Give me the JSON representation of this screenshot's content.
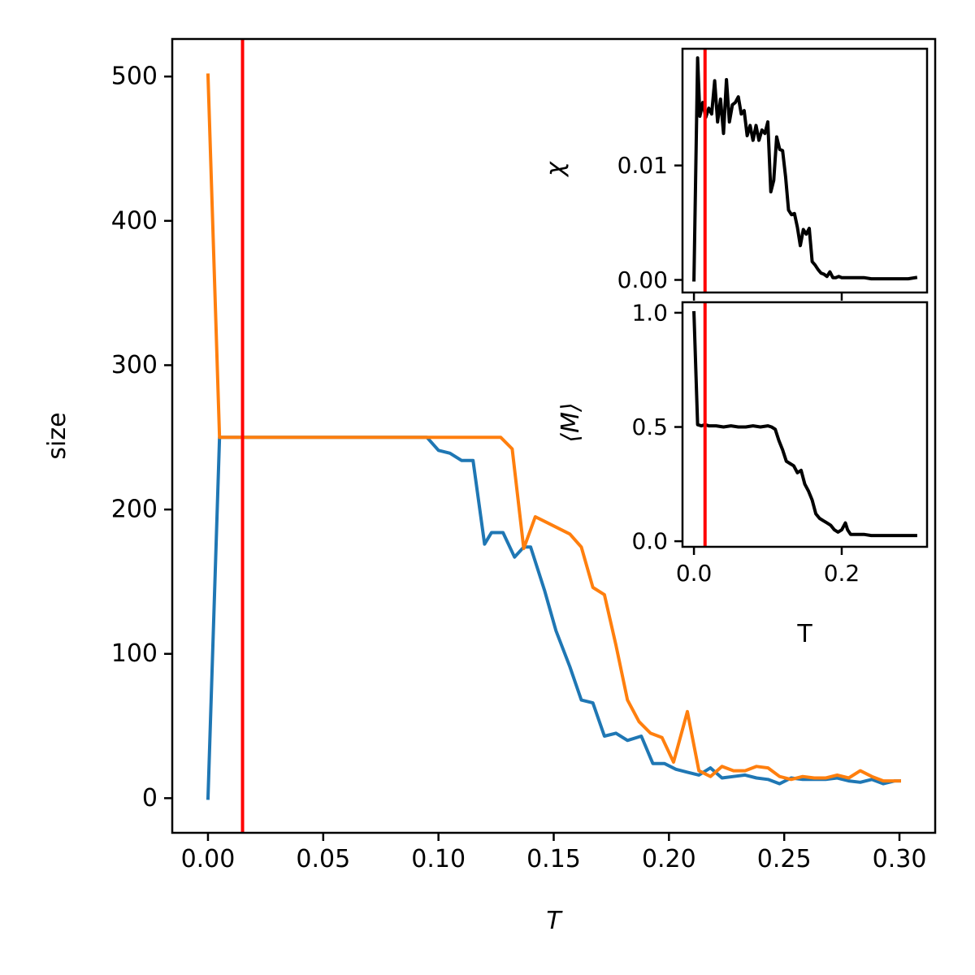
{
  "chart_data": [
    {
      "type": "line",
      "panel": "main",
      "xlabel": "T",
      "ylabel": "size",
      "xlim": [
        -0.0155,
        0.3155
      ],
      "ylim": [
        -24,
        526
      ],
      "xticks": [
        0.0,
        0.05,
        0.1,
        0.15,
        0.2,
        0.25,
        0.3
      ],
      "xtick_labels": [
        "0.00",
        "0.05",
        "0.10",
        "0.15",
        "0.20",
        "0.25",
        "0.30"
      ],
      "yticks": [
        0,
        100,
        200,
        300,
        400,
        500
      ],
      "ytick_labels": [
        "0",
        "100",
        "200",
        "300",
        "400",
        "500"
      ],
      "vline": {
        "x": 0.015,
        "color": "#ff0000"
      },
      "grid": false,
      "series": [
        {
          "color": "#1f77b4",
          "x": [
            0.0,
            0.005,
            0.01,
            0.02,
            0.04,
            0.06,
            0.08,
            0.095,
            0.1,
            0.105,
            0.11,
            0.115,
            0.12,
            0.123,
            0.128,
            0.133,
            0.137,
            0.14,
            0.146,
            0.151,
            0.157,
            0.162,
            0.167,
            0.172,
            0.177,
            0.182,
            0.188,
            0.193,
            0.198,
            0.203,
            0.208,
            0.213,
            0.218,
            0.223,
            0.228,
            0.233,
            0.238,
            0.243,
            0.248,
            0.253,
            0.258,
            0.263,
            0.268,
            0.273,
            0.278,
            0.283,
            0.288,
            0.293,
            0.298,
            0.3
          ],
          "values": [
            0,
            250,
            250,
            250,
            250,
            250,
            250,
            250,
            241,
            239,
            234,
            234,
            176,
            184,
            184,
            167,
            174,
            174,
            144,
            116,
            91,
            68,
            66,
            43,
            45,
            40,
            43,
            24,
            24,
            20,
            18,
            16,
            21,
            14,
            15,
            16,
            14,
            13,
            10,
            14,
            13,
            13,
            13,
            14,
            12,
            11,
            13,
            10,
            12,
            12
          ]
        },
        {
          "color": "#ff7f0e",
          "x": [
            0.0,
            0.005,
            0.01,
            0.03,
            0.06,
            0.09,
            0.11,
            0.127,
            0.132,
            0.137,
            0.142,
            0.147,
            0.152,
            0.157,
            0.162,
            0.167,
            0.172,
            0.177,
            0.182,
            0.187,
            0.192,
            0.197,
            0.202,
            0.208,
            0.213,
            0.218,
            0.223,
            0.228,
            0.233,
            0.238,
            0.243,
            0.248,
            0.253,
            0.258,
            0.263,
            0.268,
            0.273,
            0.278,
            0.283,
            0.288,
            0.293,
            0.298,
            0.3
          ],
          "values": [
            501,
            250,
            250,
            250,
            250,
            250,
            250,
            250,
            242,
            173,
            195,
            191,
            187,
            183,
            174,
            146,
            141,
            106,
            68,
            53,
            45,
            42,
            25,
            60,
            19,
            15,
            22,
            19,
            19,
            22,
            21,
            15,
            13,
            15,
            14,
            14,
            16,
            14,
            19,
            15,
            12,
            12,
            12
          ]
        }
      ]
    },
    {
      "type": "line",
      "panel": "inset-top",
      "ylabel": "χ",
      "xlim": [
        -0.0155,
        0.3155
      ],
      "ylim": [
        -0.0011,
        0.0202
      ],
      "yticks": [
        0.0,
        0.01
      ],
      "ytick_labels": [
        "0.00",
        "0.01"
      ],
      "vline": {
        "x": 0.015,
        "color": "#ff0000"
      },
      "series": [
        {
          "color": "#000000",
          "x": [
            0.0,
            0.005,
            0.008,
            0.012,
            0.016,
            0.02,
            0.024,
            0.028,
            0.032,
            0.036,
            0.04,
            0.044,
            0.048,
            0.052,
            0.056,
            0.06,
            0.064,
            0.068,
            0.072,
            0.076,
            0.08,
            0.084,
            0.088,
            0.092,
            0.096,
            0.1,
            0.104,
            0.108,
            0.112,
            0.116,
            0.12,
            0.124,
            0.128,
            0.132,
            0.136,
            0.14,
            0.144,
            0.148,
            0.152,
            0.156,
            0.16,
            0.164,
            0.168,
            0.172,
            0.176,
            0.18,
            0.184,
            0.188,
            0.192,
            0.196,
            0.2,
            0.204,
            0.208,
            0.212,
            0.22,
            0.23,
            0.24,
            0.25,
            0.26,
            0.27,
            0.28,
            0.29,
            0.3
          ],
          "values": [
            0.0,
            0.0194,
            0.0143,
            0.0155,
            0.0142,
            0.015,
            0.0145,
            0.0174,
            0.0138,
            0.0158,
            0.0128,
            0.0175,
            0.0138,
            0.0153,
            0.0155,
            0.016,
            0.0145,
            0.0148,
            0.0126,
            0.0135,
            0.0122,
            0.0135,
            0.0122,
            0.0131,
            0.0128,
            0.0138,
            0.0077,
            0.0087,
            0.0125,
            0.0114,
            0.0113,
            0.009,
            0.0061,
            0.0057,
            0.0058,
            0.0046,
            0.003,
            0.0044,
            0.004,
            0.0045,
            0.0016,
            0.0013,
            0.0009,
            0.0006,
            0.0005,
            0.0003,
            0.0007,
            0.0002,
            0.0002,
            0.0003,
            0.0002,
            0.0002,
            0.0002,
            0.0002,
            0.0002,
            0.0002,
            0.0001,
            0.0001,
            0.0001,
            0.0001,
            0.0001,
            0.0001,
            0.0002
          ]
        }
      ]
    },
    {
      "type": "line",
      "panel": "inset-bottom",
      "xlabel": "T",
      "ylabel": "⟨M⟩",
      "xlim": [
        -0.0155,
        0.3155
      ],
      "ylim": [
        -0.0245,
        1.046
      ],
      "xticks": [
        0.0,
        0.2
      ],
      "xtick_labels": [
        "0.0",
        "0.2"
      ],
      "yticks": [
        0.0,
        0.5,
        1.0
      ],
      "ytick_labels": [
        "0.0",
        "0.5",
        "1.0"
      ],
      "vline": {
        "x": 0.015,
        "color": "#ff0000"
      },
      "series": [
        {
          "color": "#000000",
          "x": [
            0.0,
            0.005,
            0.01,
            0.015,
            0.02,
            0.03,
            0.04,
            0.05,
            0.06,
            0.07,
            0.08,
            0.09,
            0.1,
            0.105,
            0.11,
            0.115,
            0.12,
            0.125,
            0.13,
            0.135,
            0.14,
            0.145,
            0.15,
            0.155,
            0.16,
            0.165,
            0.17,
            0.175,
            0.18,
            0.185,
            0.19,
            0.195,
            0.2,
            0.205,
            0.208,
            0.212,
            0.22,
            0.23,
            0.24,
            0.25,
            0.26,
            0.27,
            0.28,
            0.29,
            0.3
          ],
          "values": [
            1.0,
            0.51,
            0.505,
            0.51,
            0.505,
            0.505,
            0.5,
            0.505,
            0.5,
            0.5,
            0.505,
            0.5,
            0.505,
            0.5,
            0.49,
            0.44,
            0.4,
            0.35,
            0.34,
            0.33,
            0.3,
            0.31,
            0.25,
            0.22,
            0.18,
            0.12,
            0.1,
            0.09,
            0.08,
            0.07,
            0.05,
            0.04,
            0.05,
            0.08,
            0.05,
            0.03,
            0.03,
            0.03,
            0.025,
            0.025,
            0.025,
            0.025,
            0.025,
            0.025,
            0.025
          ]
        }
      ]
    }
  ]
}
